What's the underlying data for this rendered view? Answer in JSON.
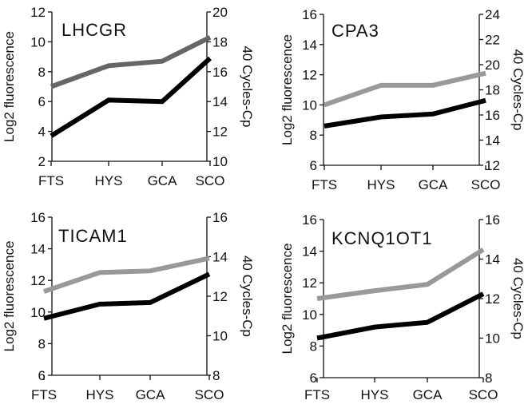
{
  "chart_data": [
    {
      "type": "line",
      "title": "LHCGR",
      "categories": [
        "FTS",
        "HYS",
        "GCA",
        "SCO"
      ],
      "ylabel": "Log2 fluorescence",
      "y2label": "40 Cycles-Cp",
      "ylim": [
        2,
        12
      ],
      "yticks": [
        2,
        4,
        6,
        8,
        10,
        12
      ],
      "y2lim": [
        10,
        20
      ],
      "y2ticks": [
        10,
        12,
        14,
        16,
        18,
        20
      ],
      "series": [
        {
          "axis": "left",
          "color": "#666666",
          "values": [
            7.0,
            8.4,
            8.7,
            10.3
          ]
        },
        {
          "axis": "left",
          "color": "#000000",
          "values": [
            3.7,
            6.1,
            6.0,
            8.9
          ]
        }
      ]
    },
    {
      "type": "line",
      "title": "CPA3",
      "categories": [
        "FTS",
        "HYS",
        "GCA",
        "SCO"
      ],
      "ylabel": "Log2 fluorescence",
      "y2label": "40 Cycles-Cp",
      "ylim": [
        6,
        16
      ],
      "yticks": [
        6,
        8,
        10,
        12,
        14,
        16
      ],
      "y2lim": [
        12,
        24
      ],
      "y2ticks": [
        12,
        14,
        16,
        18,
        20,
        22,
        24
      ],
      "series": [
        {
          "axis": "left",
          "color": "#999999",
          "values": [
            10.0,
            11.3,
            11.3,
            12.1
          ]
        },
        {
          "axis": "left",
          "color": "#000000",
          "values": [
            8.6,
            9.2,
            9.4,
            10.3
          ]
        }
      ]
    },
    {
      "type": "line",
      "title": "TICAM1",
      "categories": [
        "FTS",
        "HYS",
        "GCA",
        "SCO"
      ],
      "ylabel": "Log2 fluorescence",
      "y2label": "40 Cycles-Cp",
      "ylim": [
        6,
        16
      ],
      "yticks": [
        6,
        8,
        10,
        12,
        14,
        16
      ],
      "y2lim": [
        8,
        16
      ],
      "y2ticks": [
        8,
        10,
        12,
        14,
        16
      ],
      "series": [
        {
          "axis": "left",
          "color": "#999999",
          "values": [
            11.3,
            12.5,
            12.6,
            13.4
          ]
        },
        {
          "axis": "left",
          "color": "#000000",
          "values": [
            9.6,
            10.5,
            10.6,
            12.4
          ]
        }
      ]
    },
    {
      "type": "line",
      "title": "KCNQ1OT1",
      "categories": [
        "FTS",
        "HYS",
        "GCA",
        "SCO"
      ],
      "ylabel": "Log2 fluorescence",
      "y2label": "40 Cycles-Cp",
      "ylim": [
        6,
        16
      ],
      "yticks": [
        6,
        8,
        10,
        12,
        14,
        16
      ],
      "y2lim": [
        8,
        16
      ],
      "y2ticks": [
        8,
        10,
        12,
        14,
        16
      ],
      "series": [
        {
          "axis": "left",
          "color": "#999999",
          "values": [
            11.0,
            11.5,
            11.9,
            14.1
          ]
        },
        {
          "axis": "left",
          "color": "#000000",
          "values": [
            8.5,
            9.2,
            9.5,
            11.3
          ]
        }
      ]
    }
  ]
}
